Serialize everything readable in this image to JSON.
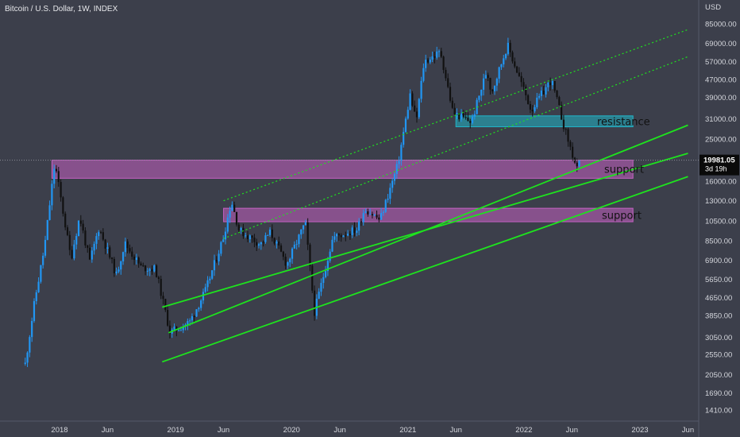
{
  "header": {
    "symbol_title": "Bitcoin / U.S. Dollar, 1W, INDEX",
    "currency": "USD"
  },
  "colors": {
    "background": "#3c3f4b",
    "candle_up": "#2196f3",
    "candle_down": "#111111",
    "trend_line": "#1ee31e",
    "support_zone": "#c561c3",
    "resistance_zone": "#1fb6c9",
    "axis_text": "#d4d6dc"
  },
  "last_price": {
    "value": "19981.05",
    "countdown": "3d 19h"
  },
  "annotations": {
    "resistance_label": "resistance",
    "support_label_upper": "support",
    "support_label_lower": "support"
  },
  "chart_data": {
    "type": "candlestick",
    "title": "Bitcoin / U.S. Dollar, 1W, INDEX",
    "y_scale": "log",
    "ylim": [
      1250,
      105000
    ],
    "y_ticks": [
      "85000.00",
      "69000.00",
      "57000.00",
      "47000.00",
      "39000.00",
      "31000.00",
      "25000.00",
      "16000.00",
      "13000.00",
      "10500.00",
      "8500.00",
      "6900.00",
      "5650.00",
      "4650.00",
      "3850.00",
      "3050.00",
      "2550.00",
      "2050.00",
      "1690.00",
      "1410.00"
    ],
    "x_ticks": [
      "2018",
      "Jun",
      "2019",
      "Jun",
      "2020",
      "Jun",
      "2021",
      "Jun",
      "2022",
      "Jun",
      "2023",
      "Jun"
    ],
    "price_path": [
      {
        "date": "2017-09-15",
        "close": 2300
      },
      {
        "date": "2017-10-15",
        "close": 4500
      },
      {
        "date": "2017-11-15",
        "close": 8000
      },
      {
        "date": "2017-12-17",
        "close": 19500
      },
      {
        "date": "2018-02-06",
        "close": 7000
      },
      {
        "date": "2018-03-05",
        "close": 11000
      },
      {
        "date": "2018-04-06",
        "close": 6800
      },
      {
        "date": "2018-05-05",
        "close": 9800
      },
      {
        "date": "2018-06-29",
        "close": 5900
      },
      {
        "date": "2018-07-25",
        "close": 8300
      },
      {
        "date": "2018-09-15",
        "close": 6400
      },
      {
        "date": "2018-10-30",
        "close": 6300
      },
      {
        "date": "2018-12-15",
        "close": 3200
      },
      {
        "date": "2019-02-15",
        "close": 3600
      },
      {
        "date": "2019-04-05",
        "close": 5000
      },
      {
        "date": "2019-05-30",
        "close": 8700
      },
      {
        "date": "2019-06-26",
        "close": 13000
      },
      {
        "date": "2019-07-20",
        "close": 9500
      },
      {
        "date": "2019-09-25",
        "close": 8200
      },
      {
        "date": "2019-10-26",
        "close": 9300
      },
      {
        "date": "2019-12-17",
        "close": 6600
      },
      {
        "date": "2020-02-13",
        "close": 10300
      },
      {
        "date": "2020-03-13",
        "close": 4000
      },
      {
        "date": "2020-05-10",
        "close": 8800
      },
      {
        "date": "2020-07-25",
        "close": 9600
      },
      {
        "date": "2020-08-18",
        "close": 12000
      },
      {
        "date": "2020-10-05",
        "close": 10600
      },
      {
        "date": "2020-11-30",
        "close": 19000
      },
      {
        "date": "2021-01-08",
        "close": 40000
      },
      {
        "date": "2021-01-27",
        "close": 30000
      },
      {
        "date": "2021-02-21",
        "close": 57000
      },
      {
        "date": "2021-04-14",
        "close": 63000
      },
      {
        "date": "2021-05-23",
        "close": 33000
      },
      {
        "date": "2021-07-20",
        "close": 30000
      },
      {
        "date": "2021-09-06",
        "close": 52000
      },
      {
        "date": "2021-09-21",
        "close": 41000
      },
      {
        "date": "2021-11-10",
        "close": 68000
      },
      {
        "date": "2022-01-24",
        "close": 34000
      },
      {
        "date": "2022-03-28",
        "close": 47000
      },
      {
        "date": "2022-05-12",
        "close": 27000
      },
      {
        "date": "2022-06-18",
        "close": 17800
      },
      {
        "date": "2022-06-27",
        "close": 19981.05
      }
    ],
    "trend_lines": [
      {
        "style": "solid",
        "from": {
          "date": "2018-12-10",
          "price": 3200
        },
        "to": {
          "date": "2023-06-01",
          "price": 29000
        }
      },
      {
        "style": "solid",
        "from": {
          "date": "2018-11-20",
          "price": 4200
        },
        "to": {
          "date": "2023-06-01",
          "price": 21500
        }
      },
      {
        "style": "solid",
        "from": {
          "date": "2018-11-20",
          "price": 2350
        },
        "to": {
          "date": "2023-06-01",
          "price": 16800
        }
      },
      {
        "style": "dotted",
        "from": {
          "date": "2019-06-01",
          "price": 8700
        },
        "to": {
          "date": "2023-06-01",
          "price": 60000
        }
      },
      {
        "style": "dotted",
        "from": {
          "date": "2019-06-01",
          "price": 13000
        },
        "to": {
          "date": "2023-06-01",
          "price": 80000
        }
      }
    ],
    "zones": [
      {
        "kind": "resistance",
        "from_date": "2021-06-01",
        "to_date": "2022-12-10",
        "low": 28500,
        "high": 32000
      },
      {
        "kind": "support",
        "from_date": "2017-12-08",
        "to_date": "2022-12-10",
        "low": 16500,
        "high": 20000
      },
      {
        "kind": "support",
        "from_date": "2019-06-01",
        "to_date": "2022-12-10",
        "low": 10400,
        "high": 12000
      }
    ]
  }
}
